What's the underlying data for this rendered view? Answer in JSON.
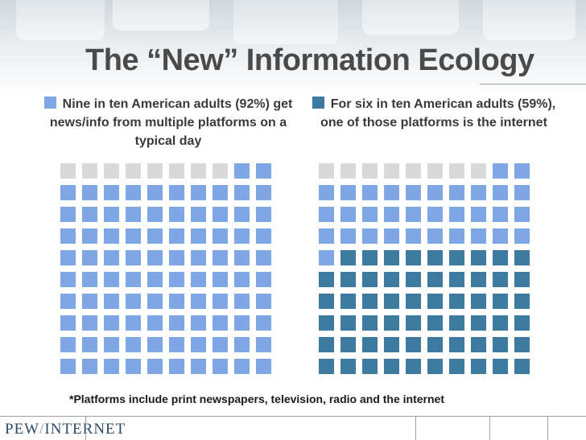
{
  "slide": {
    "title": "The “New” Information Ecology",
    "footnote": "*Platforms include print newspapers, television, radio and the internet",
    "logo_left": "PEW",
    "logo_slash": "/",
    "logo_right": "INTERNET"
  },
  "colors": {
    "empty": "#d9d9d9",
    "multiple_platforms": "#7fa7e6",
    "internet": "#3d7aa0"
  },
  "chart_data": [
    {
      "type": "waffle",
      "caption": "Nine in ten American adults (92%) get news/info from multiple platforms on a typical day",
      "total": 100,
      "percent": 92,
      "legend": [
        {
          "color": "#7fa7e6"
        }
      ],
      "series": [
        {
          "color": "#d9d9d9",
          "value": 8
        },
        {
          "color": "#7fa7e6",
          "value": 92
        }
      ]
    },
    {
      "type": "waffle",
      "caption": "For six in ten American adults (59%), one of those platforms is the internet",
      "total": 100,
      "percent": 59,
      "legend": [
        {
          "color": "#3d7aa0"
        }
      ],
      "series": [
        {
          "color": "#d9d9d9",
          "value": 8
        },
        {
          "color": "#7fa7e6",
          "value": 33
        },
        {
          "color": "#3d7aa0",
          "value": 59
        }
      ]
    }
  ]
}
